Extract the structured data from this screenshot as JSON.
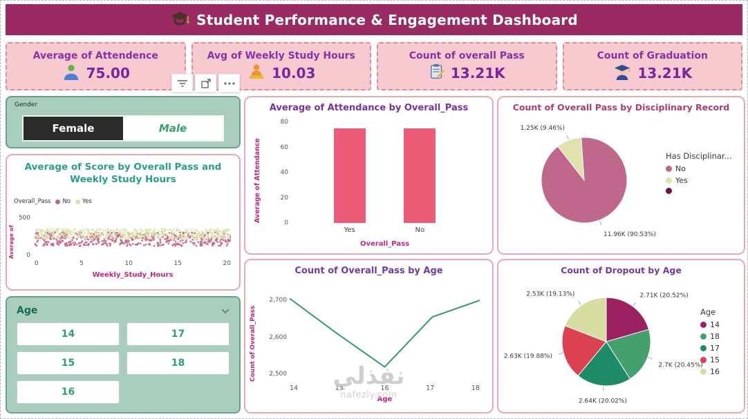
{
  "header": {
    "title": "Student Performance & Engagement Dashboard",
    "icon": "graduation-cap"
  },
  "kpis": [
    {
      "title": "Average of Attendence",
      "value": "75.00",
      "icon": "person-icon"
    },
    {
      "title": "Avg of Weekly Study Hours",
      "value": "10.03",
      "icon": "student-study-icon"
    },
    {
      "title": "Count of overall Pass",
      "value": "13.21K",
      "icon": "clipboard-check-icon"
    },
    {
      "title": "Count of Graduation",
      "value": "13.21K",
      "icon": "graduate-icon"
    }
  ],
  "toolbar": {
    "buttons": [
      "filter",
      "focus-mode",
      "more-options"
    ]
  },
  "slicers": {
    "gender": {
      "label": "Gender",
      "options": [
        {
          "label": "Female",
          "selected": true
        },
        {
          "label": "Male",
          "selected": false
        }
      ]
    },
    "age": {
      "label": "Age",
      "options": [
        "14",
        "17",
        "15",
        "18",
        "16"
      ]
    }
  },
  "watermark": {
    "text": "نفذلي",
    "site": "nafezly.com"
  },
  "chart_data": [
    {
      "name": "score-scatter",
      "type": "scatter",
      "title": "Average of Score by Overall Pass and Weekly Study Hours",
      "legend_title": "Overall_Pass",
      "xlabel": "Weekly_Study_Hours",
      "ylabel": "Average of",
      "xlim": [
        0,
        20
      ],
      "ylim": [
        0,
        500
      ],
      "xticks": [
        0,
        5,
        10,
        15,
        20
      ],
      "yticks": [
        500,
        0
      ],
      "series": [
        {
          "name": "No",
          "color": "#c0688c",
          "band": [
            140,
            305
          ],
          "count": 520,
          "seed": 11
        },
        {
          "name": "Yes",
          "color": "#dfe2ab",
          "band": [
            225,
            345
          ],
          "count": 480,
          "seed": 23
        }
      ]
    },
    {
      "name": "attendance-bar",
      "type": "bar",
      "title": "Average of Attendance by Overall_Pass",
      "categories": [
        "Yes",
        "No"
      ],
      "values": [
        75,
        75
      ],
      "bar_color": "#ec5c77",
      "xlabel": "Overall_Pass",
      "ylabel": "Average of Attendance",
      "ylim": [
        0,
        80
      ],
      "yticks": [
        0,
        20,
        40,
        60,
        80
      ]
    },
    {
      "name": "disciplinary-pie",
      "type": "pie",
      "title": "Count of Overall Pass by Disciplinary Record",
      "legend_title": "Has Disciplinar...",
      "start_angle": -38,
      "slices": [
        {
          "name": "Yes",
          "value": 1250,
          "pct": 9.46,
          "color": "#dfe2ab",
          "label": "1.25K (9.46%)"
        },
        {
          "name": "No",
          "value": 11960,
          "pct": 90.53,
          "color": "#c0688c",
          "label": "11.96K (90.53%)"
        }
      ],
      "legend": [
        {
          "label": "No",
          "color": "#c0688c"
        },
        {
          "label": "Yes",
          "color": "#dfe2ab"
        },
        {
          "label": "",
          "color": "#6d1340"
        }
      ]
    },
    {
      "name": "pass-line",
      "type": "line",
      "title": "Count of Overall_Pass by Age",
      "x": [
        14,
        15,
        16,
        17,
        18
      ],
      "values": [
        2705,
        2610,
        2520,
        2655,
        2700
      ],
      "line_color": "#2f9d68",
      "xlabel": "Age",
      "ylabel": "Count of Overall_Pass",
      "ylim": [
        2480,
        2730
      ],
      "yticks": [
        2500,
        2600,
        2700
      ],
      "ytick_labels": [
        "2,500",
        "2,600",
        "2,700"
      ]
    },
    {
      "name": "dropout-pie",
      "type": "pie",
      "title": "Count of Dropout by Age",
      "legend_title": "Age",
      "start_angle": 0,
      "slices": [
        {
          "name": "14",
          "value": 2710,
          "pct": 20.52,
          "color": "#9c2160",
          "label": "2.71K (20.52%)"
        },
        {
          "name": "18",
          "value": 2700,
          "pct": 20.45,
          "color": "#44a16d",
          "label": "2.7K (20.45%)"
        },
        {
          "name": "17",
          "value": 2640,
          "pct": 20.02,
          "color": "#1f8a68",
          "label": "2.64K (20.02%)"
        },
        {
          "name": "15",
          "value": 2630,
          "pct": 19.88,
          "color": "#da4251",
          "label": "2.63K (19.88%)"
        },
        {
          "name": "16",
          "value": 2530,
          "pct": 19.13,
          "color": "#d8dda2",
          "label": "2.53K (19.13%)"
        }
      ],
      "legend": [
        {
          "label": "14",
          "color": "#9c2160"
        },
        {
          "label": "18",
          "color": "#44a16d"
        },
        {
          "label": "17",
          "color": "#1f8a68"
        },
        {
          "label": "15",
          "color": "#da4251"
        },
        {
          "label": "16",
          "color": "#d8dda2"
        }
      ]
    }
  ]
}
